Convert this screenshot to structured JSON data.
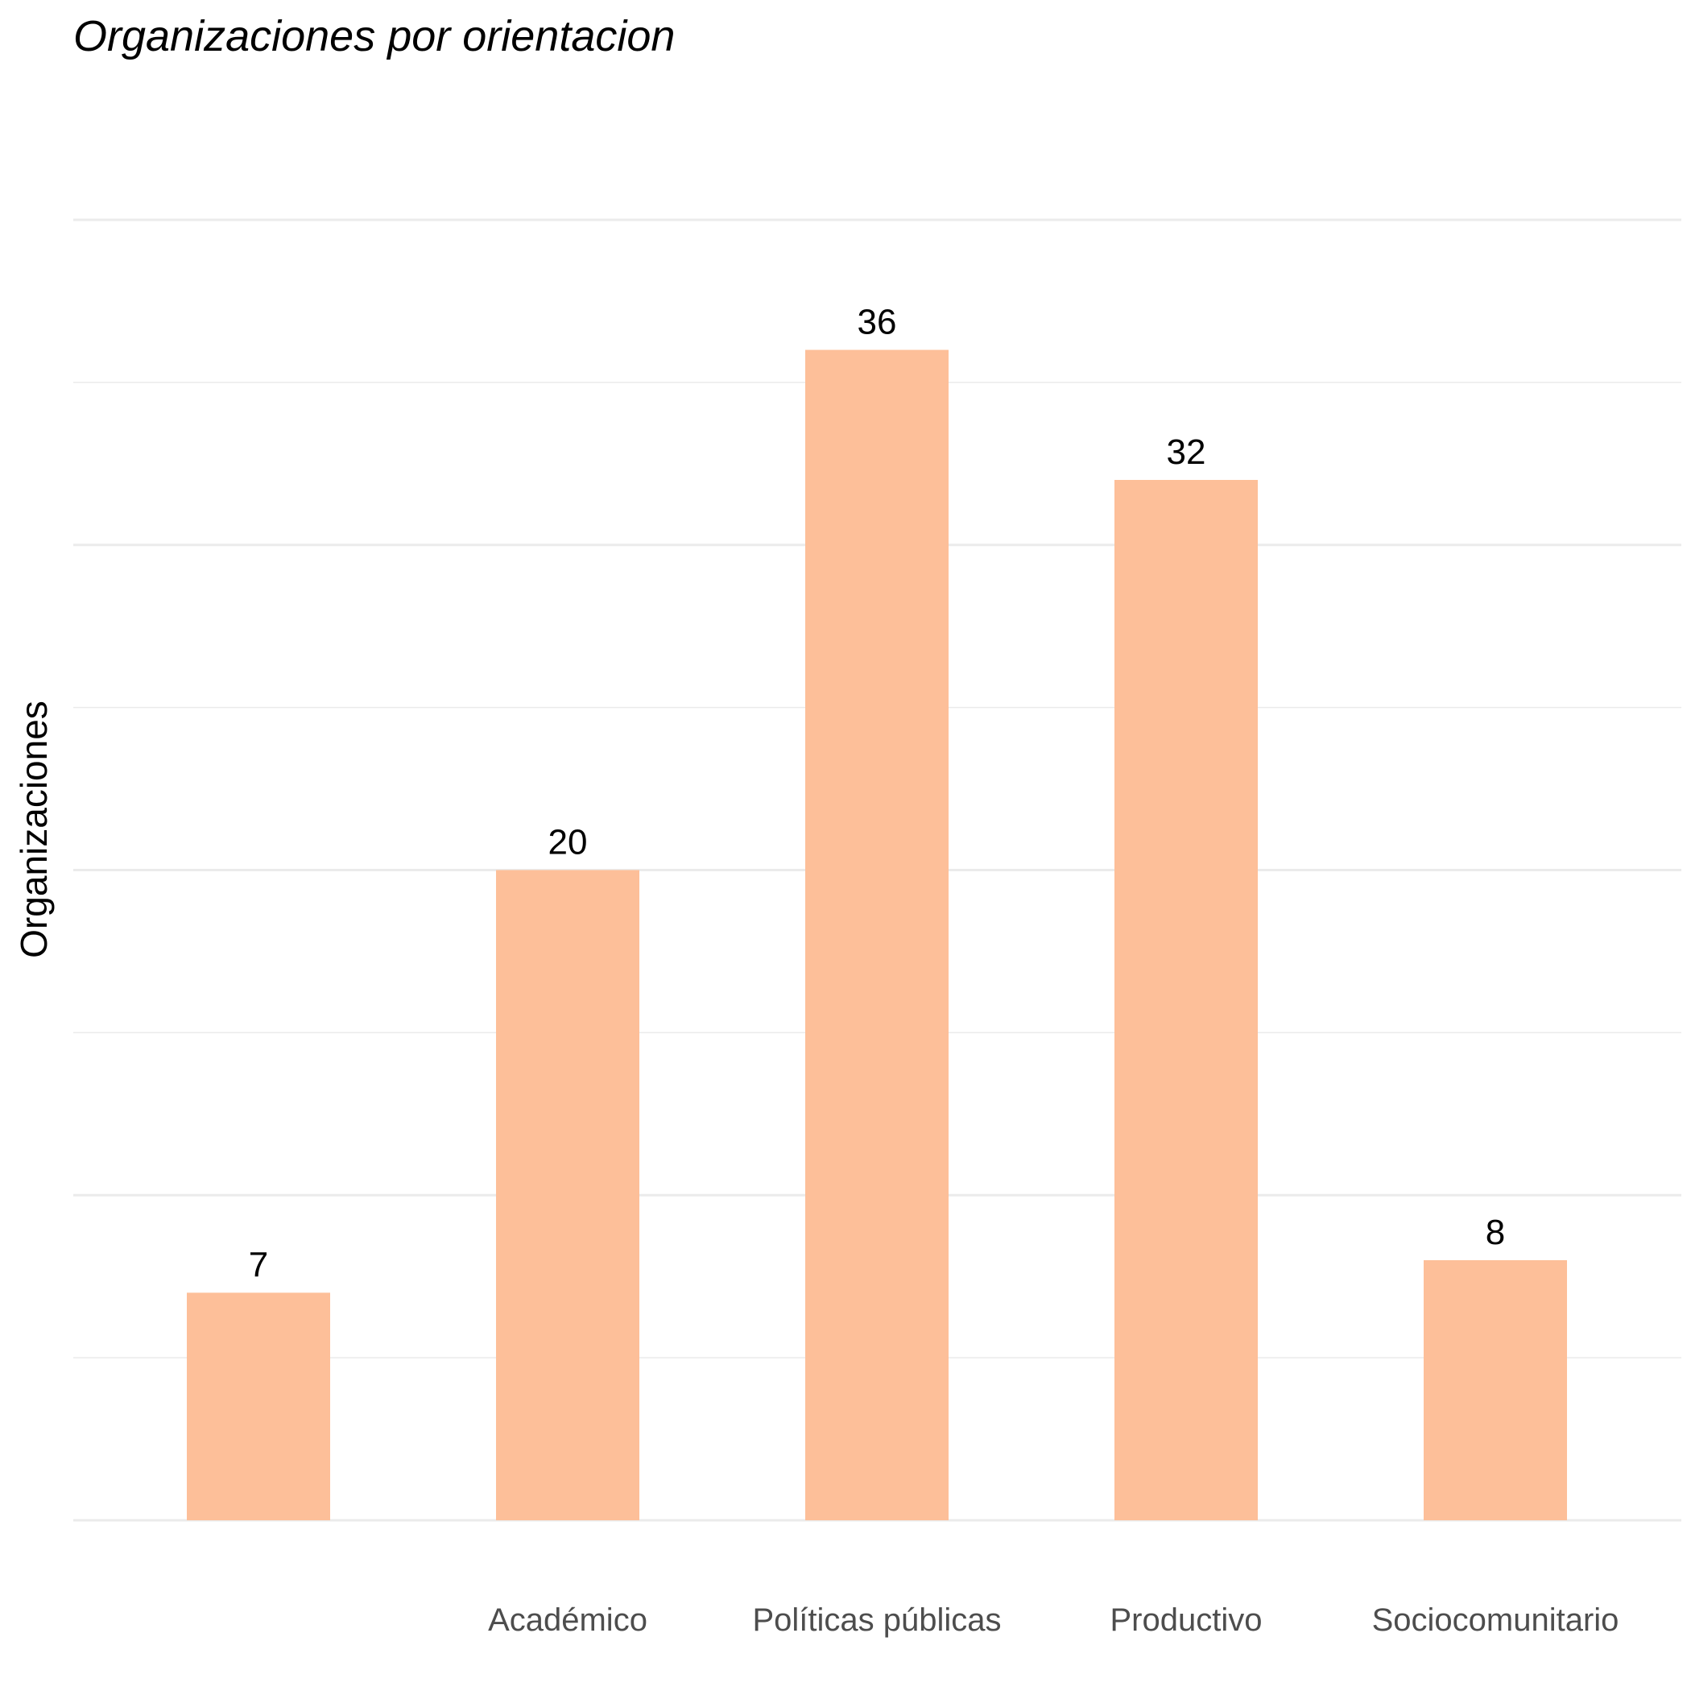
{
  "chart_data": {
    "type": "bar",
    "title": "Organizaciones por orientacion",
    "xlabel": "",
    "ylabel": "Organizaciones",
    "categories": [
      "",
      "Académico",
      "Políticas públicas",
      "Productivo",
      "Sociocomunitario"
    ],
    "values": [
      7,
      20,
      36,
      32,
      8
    ],
    "ylim": [
      0,
      40
    ],
    "grid": true,
    "legend": "none",
    "bar_color": "#FDBF99",
    "gridline_color": "#EBEBEB"
  }
}
